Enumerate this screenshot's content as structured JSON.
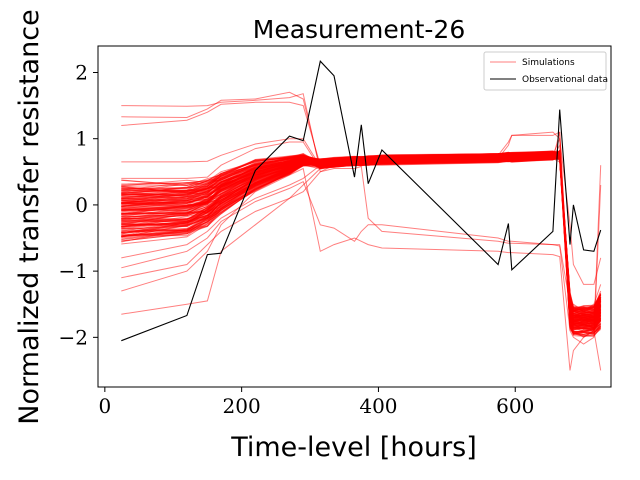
{
  "chart_data": {
    "type": "line",
    "title": "Measurement-26",
    "xlabel": "Time-level [hours]",
    "ylabel": "Normalized transfer resistance",
    "xlim": [
      -10,
      740
    ],
    "ylim": [
      -2.75,
      2.4
    ],
    "xticks": [
      0,
      200,
      400,
      600
    ],
    "xtick_labels": [
      "0",
      "200",
      "400",
      "600"
    ],
    "yticks": [
      -2,
      -1,
      0,
      1,
      2
    ],
    "ytick_labels": [
      "−2",
      "−1",
      "0",
      "1",
      "2"
    ],
    "grid": false,
    "legend_position": "top-right",
    "legend": [
      {
        "label": "Simulations",
        "color": "#ff0000",
        "opacity": 0.5
      },
      {
        "label": "Observational data",
        "color": "#000000",
        "opacity": 1
      }
    ],
    "x": [
      24,
      120,
      150,
      170,
      220,
      270,
      290,
      315,
      335,
      365,
      375,
      385,
      405,
      575,
      590,
      595,
      655,
      665,
      680,
      685,
      700,
      715,
      725
    ],
    "series": [
      {
        "name": "Observational data",
        "color": "#000000",
        "values": [
          -2.05,
          -1.67,
          -0.75,
          -0.73,
          0.52,
          1.04,
          0.97,
          2.17,
          1.95,
          0.42,
          1.21,
          0.32,
          0.83,
          -0.9,
          -0.28,
          -0.98,
          -0.4,
          1.44,
          -0.6,
          0.0,
          -0.68,
          -0.7,
          -0.38
        ]
      },
      {
        "name": "Simulations",
        "color": "#ff0000",
        "count": 160,
        "envelope_center": [
          -0.1,
          -0.05,
          0.05,
          0.2,
          0.45,
          0.6,
          0.68,
          0.62,
          0.64,
          0.66,
          0.66,
          0.67,
          0.68,
          0.71,
          0.72,
          0.72,
          0.74,
          0.75,
          -1.6,
          -1.75,
          -1.75,
          -1.75,
          -1.6
        ],
        "envelope_spread": [
          0.5,
          0.45,
          0.4,
          0.35,
          0.25,
          0.15,
          0.1,
          0.08,
          0.08,
          0.08,
          0.08,
          0.08,
          0.08,
          0.08,
          0.08,
          0.08,
          0.08,
          0.08,
          0.3,
          0.25,
          0.25,
          0.25,
          0.3
        ],
        "outliers": [
          {
            "values": [
              1.5,
              1.49,
              1.5,
              1.55,
              1.58,
              1.62,
              1.68,
              0.5,
              0.6,
              0.62,
              0.63,
              0.62,
              0.65,
              0.68,
              0.7,
              0.7,
              0.7,
              1.1,
              -1.8,
              -1.8,
              -1.7,
              -1.9,
              0.6
            ]
          },
          {
            "values": [
              1.33,
              1.32,
              1.45,
              1.58,
              1.6,
              1.7,
              1.6,
              0.55,
              0.58,
              0.6,
              0.6,
              0.6,
              0.62,
              0.65,
              0.68,
              0.68,
              0.7,
              0.65,
              -1.7,
              -1.7,
              -1.6,
              -1.7,
              -1.5
            ]
          },
          {
            "values": [
              1.2,
              1.28,
              1.4,
              1.52,
              1.55,
              1.55,
              1.5,
              0.6,
              0.62,
              0.63,
              0.63,
              0.64,
              0.65,
              0.7,
              0.72,
              0.72,
              0.75,
              1.0,
              -1.5,
              -1.6,
              -1.6,
              -1.5,
              -1.2
            ]
          },
          {
            "values": [
              0.65,
              0.65,
              0.66,
              0.75,
              0.92,
              1.0,
              1.0,
              0.58,
              0.6,
              0.62,
              0.63,
              0.64,
              0.66,
              0.7,
              0.72,
              0.72,
              0.72,
              0.9,
              -1.6,
              -1.7,
              -1.7,
              -1.65,
              -1.4
            ]
          },
          {
            "values": [
              0.4,
              0.4,
              0.42,
              0.6,
              0.85,
              0.95,
              0.95,
              0.55,
              0.6,
              0.63,
              0.64,
              0.65,
              0.66,
              0.7,
              0.9,
              1.05,
              1.05,
              1.1,
              -1.7,
              -1.8,
              -1.8,
              -1.8,
              -1.4
            ]
          },
          {
            "values": [
              -1.65,
              -1.5,
              -1.45,
              -0.7,
              -0.3,
              0.1,
              0.3,
              0.55,
              0.6,
              0.62,
              0.63,
              0.64,
              0.65,
              0.68,
              0.7,
              0.7,
              0.72,
              0.75,
              -1.8,
              -1.9,
              -2.0,
              -1.9,
              -1.8
            ]
          },
          {
            "values": [
              -1.3,
              -1.0,
              -0.7,
              -0.3,
              0.2,
              0.45,
              0.55,
              -0.7,
              -0.6,
              -0.5,
              -0.55,
              -0.6,
              -0.65,
              -0.7,
              -0.72,
              -0.72,
              -0.75,
              -0.78,
              -2.5,
              -2.2,
              -2.0,
              -1.9,
              -2.5
            ]
          },
          {
            "values": [
              -0.95,
              -0.7,
              -0.5,
              -0.25,
              0.05,
              0.25,
              0.35,
              -0.3,
              -0.35,
              -0.55,
              -0.4,
              -0.3,
              -0.3,
              -0.5,
              -0.55,
              -0.55,
              -0.6,
              -0.6,
              -1.5,
              -1.5,
              -1.6,
              -1.55,
              -1.3
            ]
          },
          {
            "values": [
              -1.1,
              -0.9,
              -0.6,
              -0.4,
              -0.1,
              0.1,
              0.2,
              0.5,
              0.55,
              0.55,
              0.58,
              -0.2,
              -0.4,
              -0.55,
              -0.58,
              -0.58,
              -0.6,
              -0.62,
              -1.9,
              -2.0,
              -2.1,
              -2.0,
              0.3
            ]
          },
          {
            "values": [
              -0.8,
              -0.6,
              -0.4,
              -0.2,
              0.1,
              0.3,
              0.4,
              0.6,
              0.62,
              0.63,
              0.64,
              0.65,
              0.66,
              0.75,
              0.95,
              1.05,
              1.1,
              1.0,
              -0.3,
              -0.9,
              -1.2,
              -1.2,
              -0.8
            ]
          }
        ]
      }
    ]
  }
}
